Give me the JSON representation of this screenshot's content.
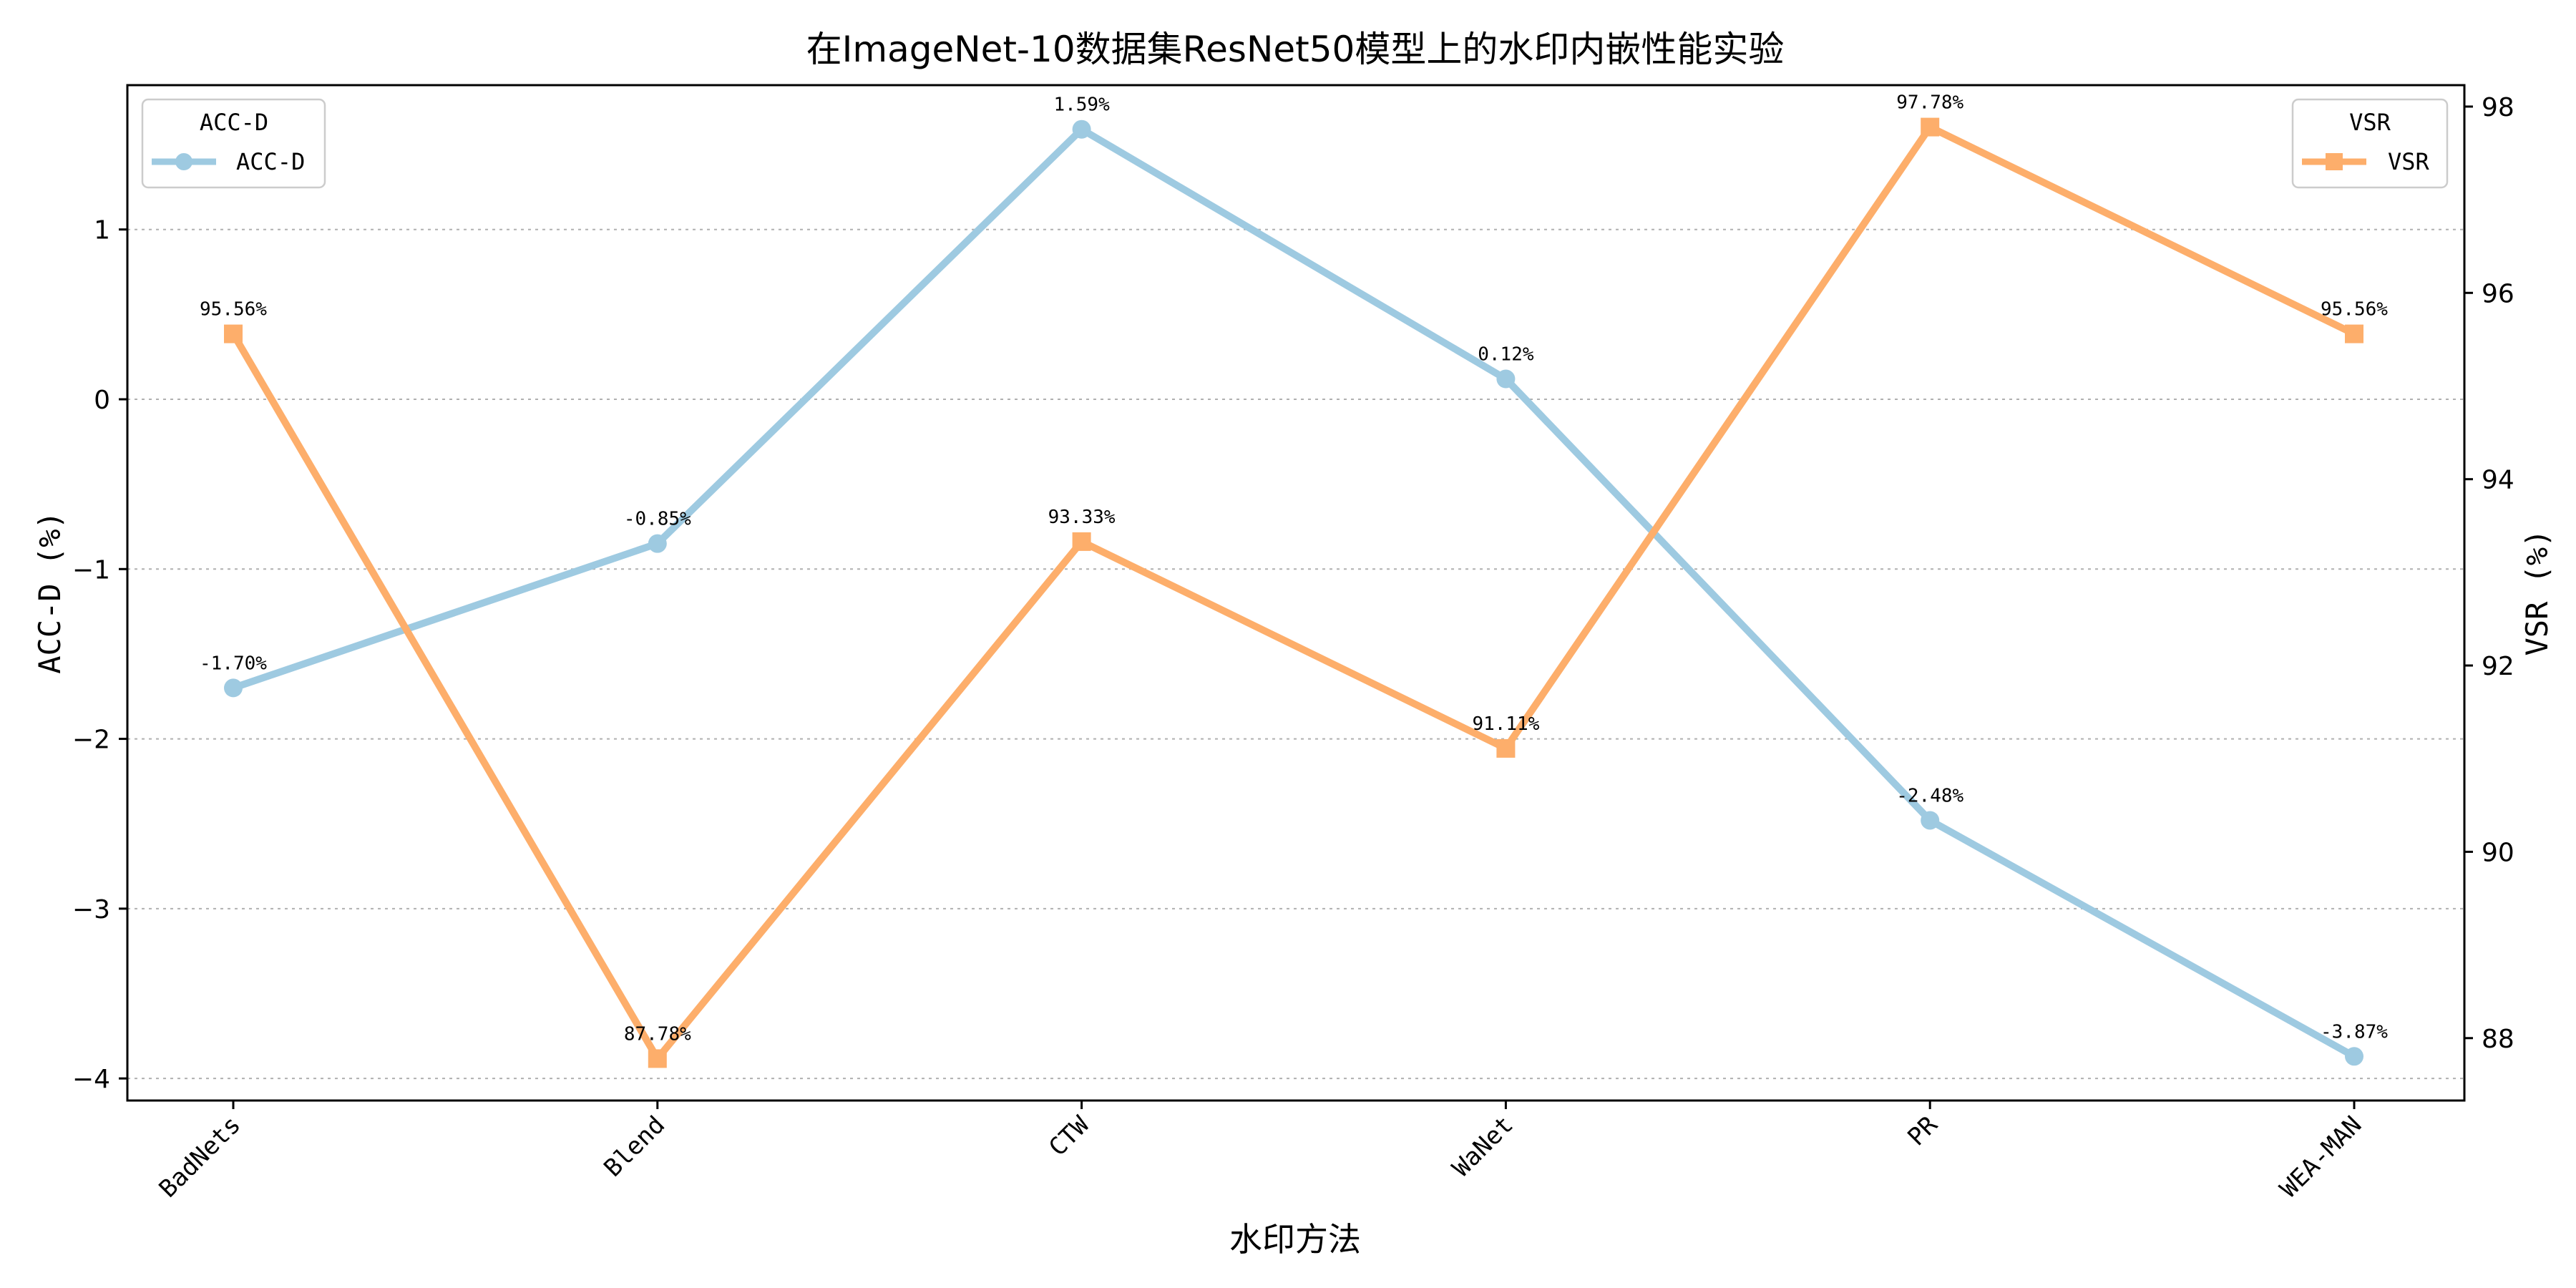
{
  "chart_data": {
    "type": "line",
    "title": "在ImageNet-10数据集ResNet50模型上的水印内嵌性能实验",
    "xlabel": "水印方法",
    "categories": [
      "BadNets",
      "Blend",
      "CTW",
      "WaNet",
      "PR",
      "WEA-MAN"
    ],
    "y_left": {
      "label": "ACC-D (%)",
      "ylim": [
        -4.13,
        1.85
      ],
      "ticks": [
        -4,
        -3,
        -2,
        -1,
        0,
        1
      ],
      "tick_labels": [
        "−4",
        "−3",
        "−2",
        "−1",
        "0",
        "1"
      ]
    },
    "y_right": {
      "label": "VSR (%)",
      "ylim": [
        87.33,
        98.23
      ],
      "ticks": [
        88,
        90,
        92,
        94,
        96,
        98
      ],
      "tick_labels": [
        "88",
        "90",
        "92",
        "94",
        "96",
        "98"
      ]
    },
    "grid": "horizontal dotted (left axis)",
    "series": [
      {
        "name": "ACC-D",
        "axis": "left",
        "color": "#9ecae1",
        "marker": "circle",
        "values": [
          -1.7,
          -0.85,
          1.59,
          0.12,
          -2.48,
          -3.87
        ],
        "labels": [
          "-1.70%",
          "-0.85%",
          "1.59%",
          "0.12%",
          "-2.48%",
          "-3.87%"
        ]
      },
      {
        "name": "VSR",
        "axis": "right",
        "color": "#fdae6b",
        "marker": "square",
        "values": [
          95.56,
          87.78,
          93.33,
          91.11,
          97.78,
          95.56
        ],
        "labels": [
          "95.56%",
          "87.78%",
          "93.33%",
          "91.11%",
          "97.78%",
          "95.56%"
        ]
      }
    ],
    "legends": [
      {
        "title": "ACC-D",
        "entry": "ACC-D",
        "placement": "upper-left"
      },
      {
        "title": "VSR",
        "entry": "VSR",
        "placement": "upper-right"
      }
    ]
  }
}
